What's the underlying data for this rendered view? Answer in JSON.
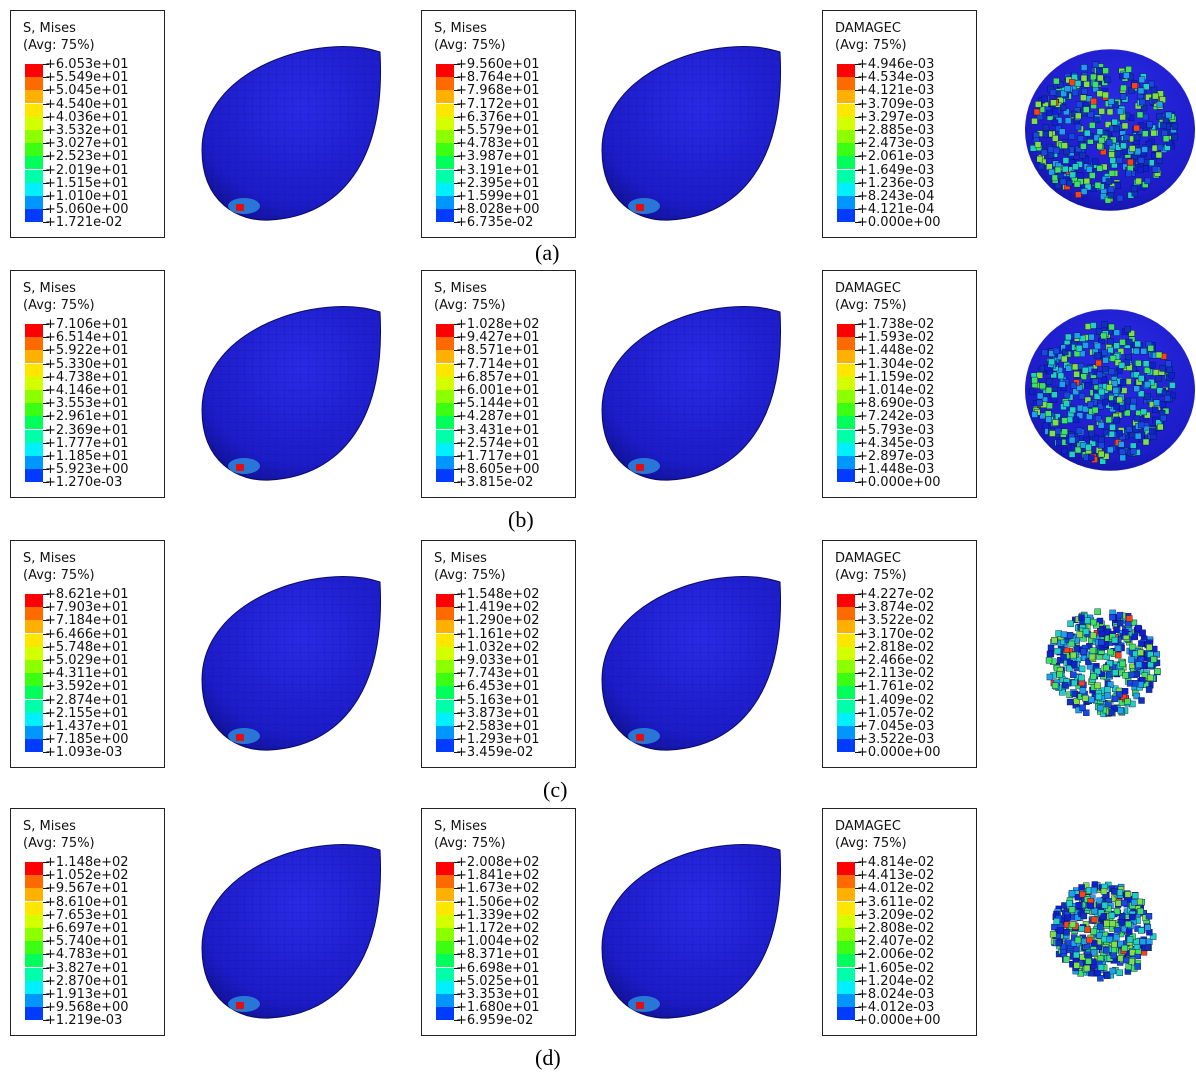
{
  "colormap": [
    "#ff0000",
    "#ff6a00",
    "#ffb000",
    "#ffe600",
    "#d4ff00",
    "#8cff00",
    "#3cff14",
    "#00ff5a",
    "#00ffa8",
    "#00f0ff",
    "#0096ff",
    "#003cff"
  ],
  "rows": [
    {
      "label": "(a)",
      "panels": [
        {
          "title": "S, Mises",
          "subtitle": "(Avg: 75%)",
          "values": [
            "+6.053e+01",
            "+5.549e+01",
            "+5.045e+01",
            "+4.540e+01",
            "+4.036e+01",
            "+3.532e+01",
            "+3.027e+01",
            "+2.523e+01",
            "+2.019e+01",
            "+1.515e+01",
            "+1.010e+01",
            "+5.060e+00",
            "+1.721e-02"
          ]
        },
        {
          "title": "S, Mises",
          "subtitle": "(Avg: 75%)",
          "values": [
            "+9.560e+01",
            "+8.764e+01",
            "+7.968e+01",
            "+7.172e+01",
            "+6.376e+01",
            "+5.579e+01",
            "+4.783e+01",
            "+3.987e+01",
            "+3.191e+01",
            "+2.395e+01",
            "+1.599e+01",
            "+8.028e+00",
            "+6.735e-02"
          ]
        },
        {
          "title": "DAMAGEC",
          "subtitle": "(Avg: 75%)",
          "values": [
            "+4.946e-03",
            "+4.534e-03",
            "+4.121e-03",
            "+3.709e-03",
            "+3.297e-03",
            "+2.885e-03",
            "+2.473e-03",
            "+2.061e-03",
            "+1.649e-03",
            "+1.236e-03",
            "+8.243e-04",
            "+4.121e-04",
            "+0.000e+00"
          ]
        }
      ]
    },
    {
      "label": "(b)",
      "panels": [
        {
          "title": "S, Mises",
          "subtitle": "(Avg: 75%)",
          "values": [
            "+7.106e+01",
            "+6.514e+01",
            "+5.922e+01",
            "+5.330e+01",
            "+4.738e+01",
            "+4.146e+01",
            "+3.553e+01",
            "+2.961e+01",
            "+2.369e+01",
            "+1.777e+01",
            "+1.185e+01",
            "+5.923e+00",
            "+1.270e-03"
          ]
        },
        {
          "title": "S, Mises",
          "subtitle": "(Avg: 75%)",
          "values": [
            "+1.028e+02",
            "+9.427e+01",
            "+8.571e+01",
            "+7.714e+01",
            "+6.857e+01",
            "+6.001e+01",
            "+5.144e+01",
            "+4.287e+01",
            "+3.431e+01",
            "+2.574e+01",
            "+1.717e+01",
            "+8.605e+00",
            "+3.815e-02"
          ]
        },
        {
          "title": "DAMAGEC",
          "subtitle": "(Avg: 75%)",
          "values": [
            "+1.738e-02",
            "+1.593e-02",
            "+1.448e-02",
            "+1.304e-02",
            "+1.159e-02",
            "+1.014e-02",
            "+8.690e-03",
            "+7.242e-03",
            "+5.793e-03",
            "+4.345e-03",
            "+2.897e-03",
            "+1.448e-03",
            "+0.000e+00"
          ]
        }
      ]
    },
    {
      "label": "(c)",
      "panels": [
        {
          "title": "S, Mises",
          "subtitle": "(Avg: 75%)",
          "values": [
            "+8.621e+01",
            "+7.903e+01",
            "+7.184e+01",
            "+6.466e+01",
            "+5.748e+01",
            "+5.029e+01",
            "+4.311e+01",
            "+3.592e+01",
            "+2.874e+01",
            "+2.155e+01",
            "+1.437e+01",
            "+7.185e+00",
            "+1.093e-03"
          ]
        },
        {
          "title": "S, Mises",
          "subtitle": "(Avg: 75%)",
          "values": [
            "+1.548e+02",
            "+1.419e+02",
            "+1.290e+02",
            "+1.161e+02",
            "+1.032e+02",
            "+9.033e+01",
            "+7.743e+01",
            "+6.453e+01",
            "+5.163e+01",
            "+3.873e+01",
            "+2.583e+01",
            "+1.293e+01",
            "+3.459e-02"
          ]
        },
        {
          "title": "DAMAGEC",
          "subtitle": "(Avg: 75%)",
          "values": [
            "+4.227e-02",
            "+3.874e-02",
            "+3.522e-02",
            "+3.170e-02",
            "+2.818e-02",
            "+2.466e-02",
            "+2.113e-02",
            "+1.761e-02",
            "+1.409e-02",
            "+1.057e-02",
            "+7.045e-03",
            "+3.522e-03",
            "+0.000e+00"
          ]
        }
      ]
    },
    {
      "label": "(d)",
      "panels": [
        {
          "title": "S, Mises",
          "subtitle": "(Avg: 75%)",
          "values": [
            "+1.148e+02",
            "+1.052e+02",
            "+9.567e+01",
            "+8.610e+01",
            "+7.653e+01",
            "+6.697e+01",
            "+5.740e+01",
            "+4.783e+01",
            "+3.827e+01",
            "+2.870e+01",
            "+1.913e+01",
            "+9.568e+00",
            "+1.219e-03"
          ]
        },
        {
          "title": "S, Mises",
          "subtitle": "(Avg: 75%)",
          "values": [
            "+2.008e+02",
            "+1.841e+02",
            "+1.673e+02",
            "+1.506e+02",
            "+1.339e+02",
            "+1.172e+02",
            "+1.004e+02",
            "+8.371e+01",
            "+6.698e+01",
            "+5.025e+01",
            "+3.353e+01",
            "+1.680e+01",
            "+6.959e-02"
          ]
        },
        {
          "title": "DAMAGEC",
          "subtitle": "(Avg: 75%)",
          "values": [
            "+4.814e-02",
            "+4.413e-02",
            "+4.012e-02",
            "+3.611e-02",
            "+3.209e-02",
            "+2.808e-02",
            "+2.407e-02",
            "+2.006e-02",
            "+1.605e-02",
            "+1.204e-02",
            "+8.024e-03",
            "+4.012e-03",
            "+0.000e+00"
          ]
        }
      ]
    }
  ]
}
